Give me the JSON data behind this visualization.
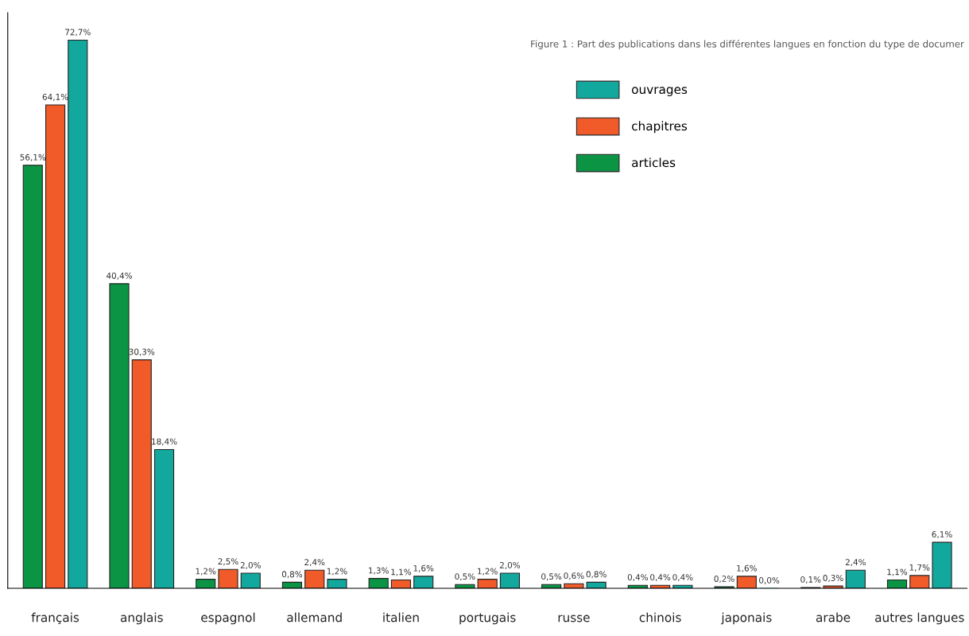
{
  "chart_data": {
    "type": "bar",
    "title": "Figure 1 : Part des publications dans les différentes langues en fonction du type de documer",
    "categories": [
      "français",
      "anglais",
      "espagnol",
      "allemand",
      "italien",
      "portugais",
      "russe",
      "chinois",
      "japonais",
      "arabe",
      "autres langues"
    ],
    "series": [
      {
        "name": "articles",
        "color": "#0b9444",
        "values": [
          56.1,
          40.4,
          1.2,
          0.8,
          1.3,
          0.5,
          0.5,
          0.4,
          0.2,
          0.1,
          1.1
        ],
        "value_labels": [
          "56,1%",
          "40,4%",
          "1,2%",
          "0,8%",
          "1,3%",
          "0,5%",
          "0,5%",
          "0,4%",
          "0,2%",
          "0,1%",
          "1,1%"
        ]
      },
      {
        "name": "chapitres",
        "color": "#f15a29",
        "values": [
          64.1,
          30.3,
          2.5,
          2.4,
          1.1,
          1.2,
          0.6,
          0.4,
          1.6,
          0.3,
          1.7
        ],
        "value_labels": [
          "64,1%",
          "30,3%",
          "2,5%",
          "2,4%",
          "1,1%",
          "1,2%",
          "0,6%",
          "0,4%",
          "1,6%",
          "0,3%",
          "1,7%"
        ]
      },
      {
        "name": "ouvrages",
        "color": "#12a89d",
        "values": [
          72.7,
          18.4,
          2.0,
          1.2,
          1.6,
          2.0,
          0.8,
          0.4,
          0.0,
          2.4,
          6.1
        ],
        "value_labels": [
          "72,7%",
          "18,4%",
          "2,0%",
          "1,2%",
          "1,6%",
          "2,0%",
          "0,8%",
          "0,4%",
          "0,0%",
          "2,4%",
          "6,1%"
        ]
      }
    ],
    "legend": "top right",
    "grid": false
  }
}
